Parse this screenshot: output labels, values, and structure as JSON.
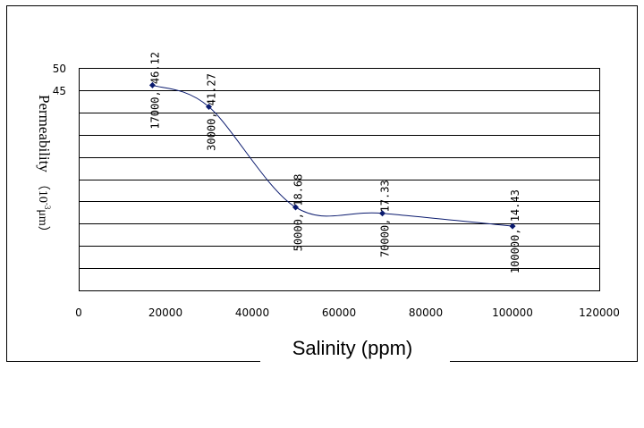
{
  "chart_data": {
    "type": "line",
    "xlabel": "Salinity (ppm)",
    "ylabel_main": "Permeability",
    "ylabel_unit": "（10",
    "ylabel_exp": "-3",
    "ylabel_tail": "μm）",
    "xlim": [
      0,
      120000
    ],
    "ylim": [
      0,
      50
    ],
    "x_ticks": [
      0,
      20000,
      40000,
      60000,
      80000,
      100000,
      120000
    ],
    "y_ticks": [
      0,
      5,
      10,
      15,
      20,
      25,
      30,
      35,
      40,
      45,
      50
    ],
    "y_tick_labels_visible": [
      "50",
      "45"
    ],
    "grid": true,
    "marker": "diamond",
    "series_color": "#0a1a6e",
    "series": [
      {
        "x": [
          17000,
          30000,
          50000,
          70000,
          100000
        ],
        "y": [
          46.12,
          41.27,
          18.68,
          17.33,
          14.43
        ],
        "labels": [
          "17000, 46.12",
          "30000, 41.27",
          "50000, 18.68",
          "70000, 17.33",
          "100000, 14.43"
        ]
      }
    ]
  }
}
